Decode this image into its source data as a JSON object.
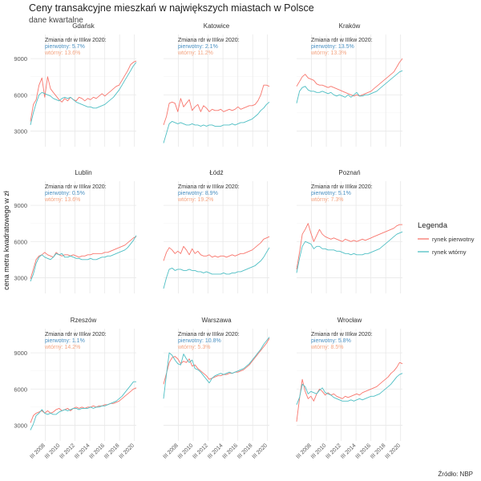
{
  "title": "Ceny transakcyjne mieszkań w największych miastach w Polsce",
  "subtitle": "dane kwartalne",
  "source": "Źródło: NBP",
  "legend": {
    "title": "Legenda",
    "items": [
      {
        "label": "rynek pierwotny",
        "color": "#f8766d"
      },
      {
        "label": "rynek wtórny",
        "color": "#4fbfc4"
      }
    ]
  },
  "chart_data": {
    "type": "line",
    "ylabel": "cena metra kwadratowego w zł",
    "xlabel": "",
    "x_ticks": [
      "III 2008",
      "III 2010",
      "III 2012",
      "III 2014",
      "III 2016",
      "III 2018",
      "III 2020"
    ],
    "x_range": [
      "III 2006",
      "III 2020"
    ],
    "y_ticks": [
      3000,
      6000,
      9000
    ],
    "ylim": [
      1700,
      11000
    ],
    "grid": true,
    "legend_position": "right",
    "annotation_header": "Zmiana rdr  w IIIkw 2020:",
    "panels": [
      {
        "city": "Gdańsk",
        "ann_primary": "pierwotny: 5.7%",
        "ann_secondary": "wtórny: 13.6%",
        "series": [
          {
            "name": "rynek pierwotny",
            "values": [
              3800,
              5200,
              5600,
              6800,
              7400,
              5800,
              7500,
              6500,
              6200,
              5900,
              5600,
              5400,
              5700,
              5500,
              5800,
              5600,
              5500,
              5800,
              5700,
              5500,
              5700,
              5600,
              5800,
              5700,
              5900,
              6100,
              5900,
              6100,
              6300,
              6500,
              6700,
              6800,
              7200,
              7600,
              8000,
              8500,
              8700,
              8800
            ]
          },
          {
            "name": "rynek wtórny",
            "values": [
              3500,
              4500,
              5300,
              6000,
              6200,
              6100,
              6000,
              5900,
              5700,
              5600,
              5500,
              5700,
              5800,
              5700,
              5800,
              5600,
              5400,
              5300,
              5200,
              5100,
              5000,
              5000,
              4900,
              4900,
              5000,
              5100,
              5200,
              5400,
              5600,
              5800,
              6100,
              6400,
              6800,
              7200,
              7600,
              8000,
              8400,
              8700
            ]
          }
        ]
      },
      {
        "city": "Katowice",
        "ann_primary": "pierwotny: 2.1%",
        "ann_secondary": "wtórny: 11.2%",
        "series": [
          {
            "name": "rynek pierwotny",
            "values": [
              3500,
              4200,
              5300,
              5400,
              5300,
              4600,
              5700,
              5000,
              5300,
              5600,
              4700,
              5000,
              5200,
              4600,
              5100,
              4900,
              4600,
              4800,
              4700,
              4700,
              4800,
              4600,
              4700,
              4800,
              4700,
              4800,
              5000,
              4800,
              4900,
              5000,
              5100,
              5100,
              5200,
              5500,
              6000,
              6800,
              6800,
              6700
            ]
          },
          {
            "name": "rynek wtórny",
            "values": [
              2000,
              2800,
              3600,
              3800,
              3700,
              3600,
              3700,
              3600,
              3500,
              3500,
              3600,
              3500,
              3500,
              3400,
              3500,
              3400,
              3500,
              3500,
              3400,
              3400,
              3400,
              3500,
              3500,
              3500,
              3600,
              3500,
              3600,
              3700,
              3700,
              3800,
              3900,
              4000,
              4200,
              4400,
              4700,
              4900,
              5200,
              5400
            ]
          }
        ]
      },
      {
        "city": "Kraków",
        "ann_primary": "pierwotny: 13.5%",
        "ann_secondary": "wtórny: 13.3%",
        "series": [
          {
            "name": "rynek pierwotny",
            "values": [
              6700,
              7100,
              7500,
              7700,
              7400,
              7300,
              7200,
              6900,
              6800,
              6800,
              6700,
              6600,
              6700,
              6600,
              6500,
              6400,
              6300,
              6200,
              6100,
              6000,
              5900,
              6000,
              5900,
              6000,
              6100,
              6200,
              6300,
              6500,
              6700,
              6900,
              7100,
              7300,
              7500,
              7700,
              7900,
              8300,
              8700,
              9000
            ]
          },
          {
            "name": "rynek wtórny",
            "values": [
              5300,
              6300,
              6600,
              6700,
              6400,
              6300,
              6300,
              6200,
              6200,
              6300,
              6200,
              6100,
              6200,
              6000,
              5900,
              6000,
              5900,
              5800,
              6000,
              5800,
              6000,
              6200,
              5900,
              5900,
              6000,
              6000,
              6100,
              6200,
              6300,
              6500,
              6700,
              6900,
              7100,
              7300,
              7500,
              7700,
              7900,
              8000
            ]
          }
        ]
      },
      {
        "city": "Lublin",
        "ann_primary": "pierwotny: 0.5%",
        "ann_secondary": "wtórny: 13.6%",
        "series": [
          {
            "name": "rynek pierwotny",
            "values": [
              2900,
              3700,
              4500,
              4800,
              4900,
              5100,
              4900,
              4800,
              4700,
              5100,
              4900,
              4800,
              4900,
              4900,
              4800,
              4900,
              4800,
              4700,
              4800,
              4800,
              4900,
              4900,
              5000,
              5000,
              5000,
              5000,
              5100,
              5100,
              5200,
              5300,
              5400,
              5500,
              5600,
              5700,
              5900,
              6100,
              6300,
              6400
            ]
          },
          {
            "name": "rynek wtórny",
            "values": [
              2700,
              3300,
              4200,
              4700,
              4900,
              4700,
              4600,
              4500,
              4700,
              5000,
              4900,
              5000,
              4700,
              4700,
              4800,
              4700,
              4600,
              4600,
              4500,
              4500,
              4500,
              4600,
              4500,
              4500,
              4600,
              4700,
              4700,
              4800,
              4800,
              4900,
              5000,
              5100,
              5200,
              5300,
              5500,
              5800,
              6100,
              6500
            ]
          }
        ]
      },
      {
        "city": "Łódź",
        "ann_primary": "pierwotny: 8.9%",
        "ann_secondary": "wtórny: 19.2%",
        "series": [
          {
            "name": "rynek pierwotny",
            "values": [
              4400,
              5100,
              5500,
              5300,
              5000,
              5200,
              5000,
              5600,
              5300,
              4900,
              5400,
              5000,
              5200,
              4900,
              4800,
              4800,
              4900,
              4700,
              4800,
              4700,
              4800,
              4800,
              4700,
              4800,
              4900,
              4800,
              4900,
              5000,
              5000,
              5100,
              5200,
              5300,
              5500,
              5700,
              5900,
              6200,
              6300,
              6400
            ]
          },
          {
            "name": "rynek wtórny",
            "values": [
              2100,
              3000,
              3700,
              3800,
              3600,
              3700,
              3700,
              3600,
              3600,
              3700,
              3600,
              3600,
              3500,
              3500,
              3400,
              3500,
              3400,
              3300,
              3300,
              3300,
              3300,
              3400,
              3300,
              3300,
              3400,
              3400,
              3500,
              3500,
              3600,
              3700,
              3800,
              3900,
              4000,
              4200,
              4400,
              4700,
              5100,
              5500
            ]
          }
        ]
      },
      {
        "city": "Poznań",
        "ann_primary": "pierwotny: 5.1%",
        "ann_secondary": "wtórny: 7.3%",
        "series": [
          {
            "name": "rynek pierwotny",
            "values": [
              3700,
              5100,
              6600,
              7000,
              7500,
              6700,
              6000,
              6500,
              7000,
              6600,
              6400,
              6300,
              6200,
              6300,
              6200,
              6100,
              6000,
              6200,
              6100,
              6000,
              6100,
              6000,
              6100,
              6200,
              6100,
              6200,
              6300,
              6400,
              6500,
              6600,
              6700,
              6800,
              6900,
              7000,
              7100,
              7300,
              7400,
              7400
            ]
          },
          {
            "name": "rynek wtórny",
            "values": [
              3400,
              4600,
              5600,
              6000,
              5900,
              5800,
              5400,
              5600,
              5600,
              5400,
              5400,
              5300,
              5300,
              5300,
              5200,
              5200,
              5100,
              5000,
              5000,
              4900,
              5000,
              4900,
              4900,
              4900,
              5000,
              5000,
              5100,
              5200,
              5300,
              5400,
              5600,
              5800,
              6000,
              6200,
              6400,
              6600,
              6700,
              6800
            ]
          }
        ]
      },
      {
        "city": "Rzeszów",
        "ann_primary": "pierwotny: 1.1%",
        "ann_secondary": "wtórny: 14.2%",
        "series": [
          {
            "name": "rynek pierwotny",
            "values": [
              3200,
              3800,
              4000,
              4100,
              4200,
              4000,
              4200,
              4000,
              4100,
              4300,
              4400,
              4200,
              4300,
              4400,
              4200,
              4400,
              4500,
              4400,
              4500,
              4400,
              4500,
              4500,
              4600,
              4500,
              4600,
              4600,
              4700,
              4700,
              4800,
              4800,
              4900,
              5000,
              5200,
              5400,
              5600,
              5800,
              6000,
              6100
            ]
          },
          {
            "name": "rynek wtórny",
            "values": [
              2600,
              3100,
              3800,
              4000,
              4300,
              4000,
              3900,
              4000,
              3900,
              3900,
              4100,
              4200,
              4300,
              4200,
              4300,
              4400,
              4400,
              4300,
              4400,
              4400,
              4400,
              4500,
              4400,
              4500,
              4500,
              4600,
              4600,
              4700,
              4800,
              4900,
              5000,
              5200,
              5400,
              5700,
              6000,
              6300,
              6600,
              6600
            ]
          }
        ]
      },
      {
        "city": "Warszawa",
        "ann_primary": "pierwotny: 10.8%",
        "ann_secondary": "wtórny: 5.3%",
        "series": [
          {
            "name": "rynek pierwotny",
            "values": [
              6400,
              7300,
              8200,
              8600,
              8700,
              8500,
              8100,
              8300,
              8200,
              8500,
              7900,
              8000,
              7700,
              7500,
              7300,
              7100,
              6800,
              6900,
              7000,
              7100,
              7100,
              7200,
              7200,
              7300,
              7300,
              7400,
              7400,
              7500,
              7600,
              7800,
              8000,
              8300,
              8600,
              8900,
              9200,
              9500,
              9800,
              10200
            ]
          },
          {
            "name": "rynek wtórny",
            "values": [
              5200,
              7200,
              9000,
              8800,
              8400,
              8100,
              8000,
              8900,
              8500,
              8200,
              8400,
              7700,
              7600,
              7400,
              7100,
              6800,
              6500,
              6900,
              7100,
              7200,
              7300,
              7200,
              7300,
              7400,
              7300,
              7400,
              7500,
              7600,
              7700,
              7900,
              8100,
              8400,
              8700,
              9000,
              9300,
              9700,
              10000,
              10300
            ]
          }
        ]
      },
      {
        "city": "Wrocław",
        "ann_primary": "pierwotny: 5.8%",
        "ann_secondary": "wtórny: 8.5%",
        "series": [
          {
            "name": "rynek pierwotny",
            "values": [
              3300,
              5200,
              6800,
              5800,
              5200,
              5400,
              5000,
              5600,
              6000,
              5800,
              5500,
              5700,
              5500,
              5600,
              5400,
              5300,
              5200,
              5400,
              5300,
              5400,
              5500,
              5600,
              5500,
              5700,
              5800,
              5900,
              6000,
              6100,
              6200,
              6400,
              6600,
              6800,
              7000,
              7300,
              7500,
              7800,
              8200,
              8100
            ]
          },
          {
            "name": "rynek wtórny",
            "values": [
              4700,
              5300,
              6400,
              6200,
              5600,
              5800,
              5700,
              5600,
              5900,
              6100,
              5700,
              5600,
              5500,
              5300,
              5200,
              5100,
              5000,
              5000,
              5000,
              5100,
              5000,
              5100,
              5200,
              5100,
              5200,
              5300,
              5400,
              5400,
              5500,
              5600,
              5800,
              6000,
              6200,
              6400,
              6700,
              7000,
              7200,
              7300
            ]
          }
        ]
      }
    ]
  }
}
